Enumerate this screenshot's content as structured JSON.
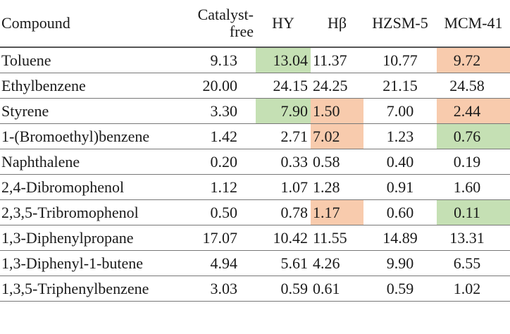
{
  "table": {
    "headers": [
      "Compound",
      "Catalyst-free",
      "HY",
      "Hβ",
      "HZSM-5",
      "MCM-41"
    ],
    "header_lines": {
      "catalyst_free_line1": "Catalyst-",
      "catalyst_free_line2": "free"
    },
    "colors": {
      "green": "#c5e0b4",
      "orange": "#f8cbad"
    },
    "rows": [
      {
        "compound": "Toluene",
        "values": [
          "9.13",
          "13.04",
          "11.37",
          "10.77",
          "9.72"
        ],
        "highlights": [
          "",
          "green",
          "",
          "",
          "orange"
        ]
      },
      {
        "compound": "Ethylbenzene",
        "values": [
          "20.00",
          "24.15",
          "24.25",
          "21.15",
          "24.58"
        ],
        "highlights": [
          "",
          "",
          "",
          "",
          ""
        ]
      },
      {
        "compound": "Styrene",
        "values": [
          "3.30",
          "7.90",
          "1.50",
          "7.00",
          "2.44"
        ],
        "highlights": [
          "",
          "green",
          "orange",
          "",
          "orange"
        ]
      },
      {
        "compound": "1-(Bromoethyl)benzene",
        "values": [
          "1.42",
          "2.71",
          "7.02",
          "1.23",
          "0.76"
        ],
        "highlights": [
          "",
          "",
          "orange",
          "",
          "green"
        ]
      },
      {
        "compound": "Naphthalene",
        "values": [
          "0.20",
          "0.33",
          "0.58",
          "0.40",
          "0.19"
        ],
        "highlights": [
          "",
          "",
          "",
          "",
          ""
        ]
      },
      {
        "compound": "2,4-Dibromophenol",
        "values": [
          "1.12",
          "1.07",
          "1.28",
          "0.91",
          "1.60"
        ],
        "highlights": [
          "",
          "",
          "",
          "",
          ""
        ]
      },
      {
        "compound": "2,3,5-Tribromophenol",
        "values": [
          "0.50",
          "0.78",
          "1.17",
          "0.60",
          "0.11"
        ],
        "highlights": [
          "",
          "",
          "orange",
          "",
          "green"
        ]
      },
      {
        "compound": "1,3-Diphenylpropane",
        "values": [
          "17.07",
          "10.42",
          "11.55",
          "14.89",
          "13.31"
        ],
        "highlights": [
          "",
          "",
          "",
          "",
          ""
        ]
      },
      {
        "compound": "1,3-Diphenyl-1-butene",
        "values": [
          "4.94",
          "5.61",
          "4.26",
          "9.90",
          "6.55"
        ],
        "highlights": [
          "",
          "",
          "",
          "",
          ""
        ]
      },
      {
        "compound": "1,3,5-Triphenylbenzene",
        "values": [
          "3.03",
          "0.59",
          "0.61",
          "0.59",
          "1.02"
        ],
        "highlights": [
          "",
          "",
          "",
          "",
          ""
        ]
      }
    ]
  }
}
